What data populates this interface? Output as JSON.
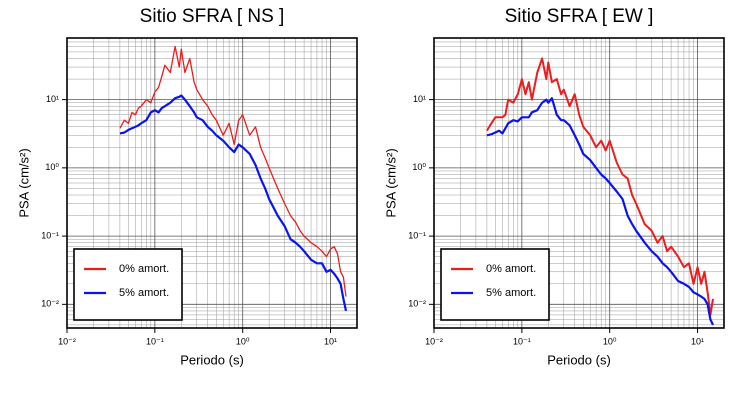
{
  "chart_data": [
    {
      "type": "line",
      "title": "Sitio SFRA [ NS ]",
      "x_label": "Periodo (s)",
      "y_label": "PSA (cm/s²)",
      "log_x": true,
      "log_y": true,
      "grid": true,
      "legend": "lower left",
      "xlim": [
        0.01,
        20
      ],
      "ylim": [
        0.0045,
        80
      ],
      "xticks": [
        {
          "value": 0.01,
          "label": "10⁻²"
        },
        {
          "value": 0.1,
          "label": "10⁻¹"
        },
        {
          "value": 1,
          "label": "10⁰"
        },
        {
          "value": 10,
          "label": "10¹"
        }
      ],
      "yticks": [
        {
          "value": 0.01,
          "label": "10⁻²"
        },
        {
          "value": 0.1,
          "label": "10⁻¹"
        },
        {
          "value": 1,
          "label": "10⁰"
        },
        {
          "value": 10,
          "label": "10¹"
        }
      ],
      "x": [
        0.04,
        0.045,
        0.05,
        0.055,
        0.06,
        0.065,
        0.07,
        0.08,
        0.09,
        0.1,
        0.11,
        0.12,
        0.13,
        0.15,
        0.17,
        0.19,
        0.2,
        0.22,
        0.25,
        0.28,
        0.3,
        0.35,
        0.4,
        0.45,
        0.5,
        0.6,
        0.7,
        0.8,
        0.9,
        1.0,
        1.2,
        1.4,
        1.6,
        1.8,
        2,
        2.5,
        3,
        3.5,
        4,
        4.5,
        5,
        6,
        7,
        8,
        9,
        10,
        11,
        12,
        13,
        14,
        15
      ],
      "series": [
        {
          "name": "0% amort.",
          "color": "#ee1c1c",
          "values": [
            3.8,
            5,
            4.5,
            6.5,
            6,
            7.5,
            8,
            10,
            9,
            13,
            15,
            22,
            32,
            25,
            60,
            30,
            55,
            25,
            40,
            18,
            14,
            10,
            8,
            6,
            5,
            3,
            4.5,
            2.2,
            5,
            6,
            3,
            4,
            2,
            1.4,
            1,
            0.5,
            0.3,
            0.2,
            0.16,
            0.12,
            0.1,
            0.08,
            0.07,
            0.06,
            0.05,
            0.065,
            0.07,
            0.055,
            0.03,
            0.025,
            0.013
          ]
        },
        {
          "name": "5% amort.",
          "color": "#0a14f0",
          "values": [
            3.2,
            3.3,
            3.6,
            3.8,
            4.0,
            4.2,
            4.5,
            5.0,
            6.5,
            7.0,
            6.5,
            7.5,
            8,
            9,
            10.5,
            11,
            11.5,
            10,
            8,
            6.5,
            5.5,
            5,
            4,
            3.5,
            3,
            2.5,
            2,
            1.7,
            2.2,
            2,
            1.6,
            1.1,
            0.7,
            0.5,
            0.35,
            0.2,
            0.14,
            0.09,
            0.08,
            0.07,
            0.06,
            0.045,
            0.04,
            0.04,
            0.03,
            0.032,
            0.028,
            0.024,
            0.02,
            0.012,
            0.008
          ]
        }
      ]
    },
    {
      "type": "line",
      "title": "Sitio SFRA [ EW ]",
      "x_label": "Periodo (s)",
      "y_label": "PSA (cm/s²)",
      "log_x": true,
      "log_y": true,
      "grid": true,
      "legend": "lower left",
      "xlim": [
        0.01,
        20
      ],
      "ylim": [
        0.0045,
        80
      ],
      "xticks": [
        {
          "value": 0.01,
          "label": "10⁻²"
        },
        {
          "value": 0.1,
          "label": "10⁻¹"
        },
        {
          "value": 1,
          "label": "10⁰"
        },
        {
          "value": 10,
          "label": "10¹"
        }
      ],
      "yticks": [
        {
          "value": 0.01,
          "label": "10⁻²"
        },
        {
          "value": 0.1,
          "label": "10⁻¹"
        },
        {
          "value": 1,
          "label": "10⁰"
        },
        {
          "value": 10,
          "label": "10¹"
        }
      ],
      "x": [
        0.04,
        0.045,
        0.05,
        0.055,
        0.06,
        0.065,
        0.07,
        0.08,
        0.09,
        0.1,
        0.11,
        0.12,
        0.13,
        0.15,
        0.17,
        0.19,
        0.2,
        0.22,
        0.25,
        0.28,
        0.3,
        0.35,
        0.4,
        0.45,
        0.5,
        0.6,
        0.7,
        0.8,
        0.9,
        1.0,
        1.2,
        1.4,
        1.6,
        1.8,
        2,
        2.5,
        3,
        3.5,
        4,
        4.5,
        5,
        6,
        7,
        8,
        9,
        10,
        11,
        12,
        13,
        14,
        15
      ],
      "series": [
        {
          "name": "0% amort.",
          "color": "#ee1c1c",
          "values": [
            3.5,
            4.5,
            5.5,
            5.5,
            5.5,
            6,
            10,
            9,
            12,
            20,
            12,
            18,
            10,
            25,
            40,
            20,
            35,
            18,
            20,
            12,
            14,
            8,
            12,
            6,
            4,
            3,
            2,
            2.5,
            1.8,
            2.5,
            1.2,
            0.8,
            0.7,
            0.4,
            0.3,
            0.15,
            0.12,
            0.08,
            0.1,
            0.06,
            0.07,
            0.05,
            0.035,
            0.04,
            0.02,
            0.035,
            0.02,
            0.03,
            0.015,
            0.007,
            0.012
          ]
        },
        {
          "name": "5% amort.",
          "color": "#0a14f0",
          "values": [
            3,
            3.1,
            3.3,
            3.5,
            3.2,
            3.8,
            4.5,
            5,
            4.8,
            5.5,
            5.5,
            5.5,
            6.5,
            7,
            9,
            10,
            9,
            10.5,
            6,
            5,
            5,
            4.2,
            3,
            2.2,
            1.6,
            1.3,
            1,
            0.8,
            0.7,
            0.6,
            0.45,
            0.35,
            0.2,
            0.15,
            0.12,
            0.08,
            0.06,
            0.05,
            0.04,
            0.035,
            0.03,
            0.022,
            0.02,
            0.018,
            0.015,
            0.014,
            0.013,
            0.012,
            0.01,
            0.006,
            0.005
          ]
        }
      ]
    }
  ]
}
